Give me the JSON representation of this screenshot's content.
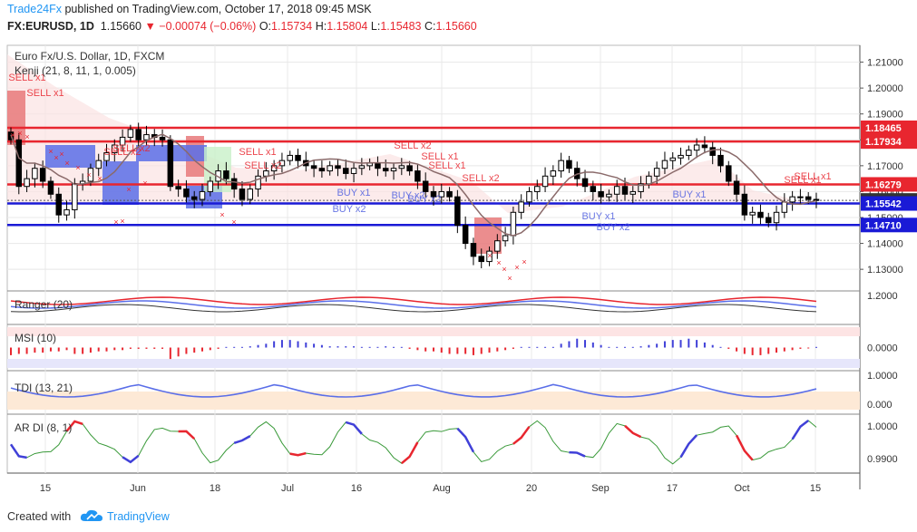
{
  "header": {
    "publisher": "Trade24Fx",
    "published_text": "published on TradingView.com, October 17, 2018 09:45 MSK",
    "symbol": "FX:EURUSD, 1D",
    "last": "1.15660",
    "change": "▼ −0.00074 (−0.06%)",
    "o_label": "O:",
    "o": "1.15734",
    "h_label": "H:",
    "h": "1.15804",
    "l_label": "L:",
    "l": "1.15483",
    "c_label": "C:",
    "c": "1.15660"
  },
  "footer": {
    "created_with": "Created with",
    "brand": "TradingView"
  },
  "colors": {
    "up": "#ffffff",
    "down": "#000000",
    "red_line": "#e8262f",
    "blue_line": "#1a1ad6",
    "kenji": "#8a6a6a",
    "grid": "#e8e8e8",
    "brand": "#2196f3"
  },
  "chart_data": [
    {
      "type": "candlestick",
      "title": "Euro Fx/U.S. Dollar, 1D, FXCM",
      "indicator_label": "Kenji (21, 8, 11, 1, 0.005)",
      "y_ticks": [
        "1.21000",
        "1.20000",
        "1.19000",
        "1.18000",
        "1.17000",
        "1.16000",
        "1.15000",
        "1.14000",
        "1.13000"
      ],
      "ylim": [
        1.122,
        1.2165
      ],
      "x_tick_labels": [
        "15",
        "Jun",
        "18",
        "Jul",
        "16",
        "Aug",
        "20",
        "Sep",
        "17",
        "Oct",
        "15"
      ],
      "levels": [
        {
          "value": 1.18465,
          "label": "1.18465",
          "color": "red"
        },
        {
          "value": 1.17934,
          "label": "1.17934",
          "color": "red"
        },
        {
          "value": 1.16279,
          "label": "1.16279",
          "color": "red"
        },
        {
          "value": 1.1566,
          "label": "1.15660",
          "color": "black"
        },
        {
          "value": 1.15542,
          "label": "1.15542",
          "color": "blue"
        },
        {
          "value": 1.1471,
          "label": "1.14710",
          "color": "blue"
        }
      ],
      "closes": [
        1.18,
        1.162,
        1.165,
        1.169,
        1.164,
        1.159,
        1.151,
        1.153,
        1.163,
        1.164,
        1.169,
        1.172,
        1.175,
        1.178,
        1.181,
        1.184,
        1.18,
        1.182,
        1.181,
        1.18,
        1.162,
        1.161,
        1.158,
        1.157,
        1.16,
        1.164,
        1.168,
        1.165,
        1.161,
        1.157,
        1.161,
        1.166,
        1.168,
        1.17,
        1.172,
        1.174,
        1.172,
        1.17,
        1.169,
        1.168,
        1.17,
        1.169,
        1.167,
        1.169,
        1.17,
        1.171,
        1.169,
        1.168,
        1.169,
        1.17,
        1.168,
        1.164,
        1.16,
        1.158,
        1.16,
        1.158,
        1.147,
        1.14,
        1.135,
        1.133,
        1.137,
        1.141,
        1.143,
        1.152,
        1.156,
        1.16,
        1.162,
        1.166,
        1.168,
        1.172,
        1.169,
        1.165,
        1.162,
        1.16,
        1.158,
        1.159,
        1.162,
        1.159,
        1.16,
        1.163,
        1.166,
        1.169,
        1.172,
        1.173,
        1.174,
        1.176,
        1.178,
        1.177,
        1.174,
        1.17,
        1.164,
        1.159,
        1.151,
        1.152,
        1.15,
        1.148,
        1.152,
        1.156,
        1.158,
        1.158,
        1.157,
        1.1566
      ],
      "signals": [
        {
          "text": "SELL x1",
          "kind": "sell"
        },
        {
          "text": "SELL x1",
          "kind": "sell"
        },
        {
          "text": "SELL x2",
          "kind": "sell"
        },
        {
          "text": "SELL x2",
          "kind": "sell"
        },
        {
          "text": "SELL x1",
          "kind": "sell"
        },
        {
          "text": "SELL x2",
          "kind": "sell"
        },
        {
          "text": "SELL x2",
          "kind": "sell"
        },
        {
          "text": "SELL x1",
          "kind": "sell"
        },
        {
          "text": "SELL x1",
          "kind": "sell"
        },
        {
          "text": "SELL x2",
          "kind": "sell"
        },
        {
          "text": "SELL x1",
          "kind": "sell"
        },
        {
          "text": "BUY x1",
          "kind": "buy"
        },
        {
          "text": "BUY x2",
          "kind": "buy"
        },
        {
          "text": "BUY x2",
          "kind": "buy"
        },
        {
          "text": "BUY x2",
          "kind": "buy"
        },
        {
          "text": "BUY x1",
          "kind": "buy"
        },
        {
          "text": "BUY x2",
          "kind": "buy"
        },
        {
          "text": "BUY x1",
          "kind": "buy"
        }
      ]
    },
    {
      "type": "line",
      "title": "Ranger (20)",
      "y_ticks": [
        "1.2000"
      ]
    },
    {
      "type": "bar",
      "title": "MSI (10)",
      "y_ticks": [
        "0.0000"
      ],
      "values": [
        -0.6,
        -0.5,
        -0.5,
        -0.4,
        -0.4,
        -0.3,
        -0.3,
        -0.2,
        -0.5,
        -0.5,
        -0.4,
        -0.3,
        -0.3,
        -0.2,
        -0.2,
        -0.1,
        -0.1,
        -0.1,
        -0.1,
        -0.1,
        -0.9,
        -0.7,
        -0.5,
        -0.4,
        -0.3,
        -0.2,
        -0.1,
        0.05,
        0.05,
        0.05,
        0.1,
        0.2,
        0.3,
        0.5,
        0.6,
        0.6,
        0.5,
        0.4,
        0.3,
        0.2,
        0.1,
        0.1,
        0.1,
        0.1,
        0.05,
        0.05,
        0.05,
        0.1,
        0.05,
        0.05,
        -0.1,
        -0.2,
        -0.3,
        -0.3,
        -0.4,
        -0.5,
        -0.5,
        -0.5,
        -0.6,
        -0.5,
        -0.4,
        -0.3,
        -0.2,
        -0.1,
        0.05,
        0.05,
        0.05,
        0.05,
        0.05,
        0.3,
        0.5,
        0.7,
        0.6,
        0.4,
        0.2,
        0.05,
        0.05,
        0.05,
        0.05,
        0.1,
        0.2,
        0.3,
        0.5,
        0.6,
        0.6,
        0.7,
        0.6,
        0.4,
        0.2,
        0.05,
        -0.1,
        -0.3,
        -0.5,
        -0.6,
        -0.6,
        -0.5,
        -0.4,
        -0.3,
        -0.2,
        -0.1,
        -0.05,
        0.05
      ]
    },
    {
      "type": "line",
      "title": "TDI (13, 21)",
      "y_ticks": [
        "1.0000",
        "0.000"
      ]
    },
    {
      "type": "line",
      "title": "AR DI (8, 1)",
      "y_ticks": [
        "1.0000",
        "0.9900"
      ]
    }
  ]
}
